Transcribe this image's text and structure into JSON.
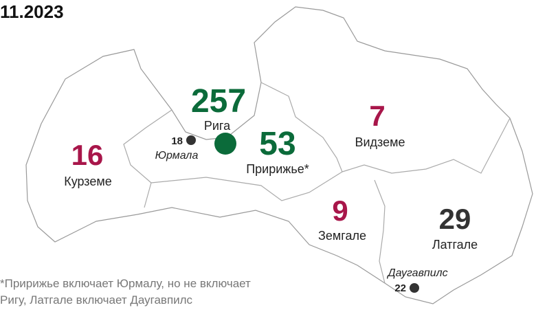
{
  "title": "11.2023",
  "regions": [
    {
      "name": "Рига",
      "value": 257,
      "color": "#0b6b3a"
    },
    {
      "name": "Пририжье*",
      "value": 53,
      "color": "#0b6b3a"
    },
    {
      "name": "Курземе",
      "value": 16,
      "color": "#a8164a"
    },
    {
      "name": "Видземе",
      "value": 7,
      "color": "#a8164a"
    },
    {
      "name": "Земгале",
      "value": 9,
      "color": "#a8164a"
    },
    {
      "name": "Латгале",
      "value": 29,
      "color": "#333333"
    }
  ],
  "cities": [
    {
      "name": "Юрмала",
      "value": 18
    },
    {
      "name": "Даугавпилс",
      "value": 22
    }
  ],
  "footnote": [
    "*Пририжье включает Юрмалу, но не включает",
    "Ригу, Латгале включает Даугавпилс"
  ]
}
